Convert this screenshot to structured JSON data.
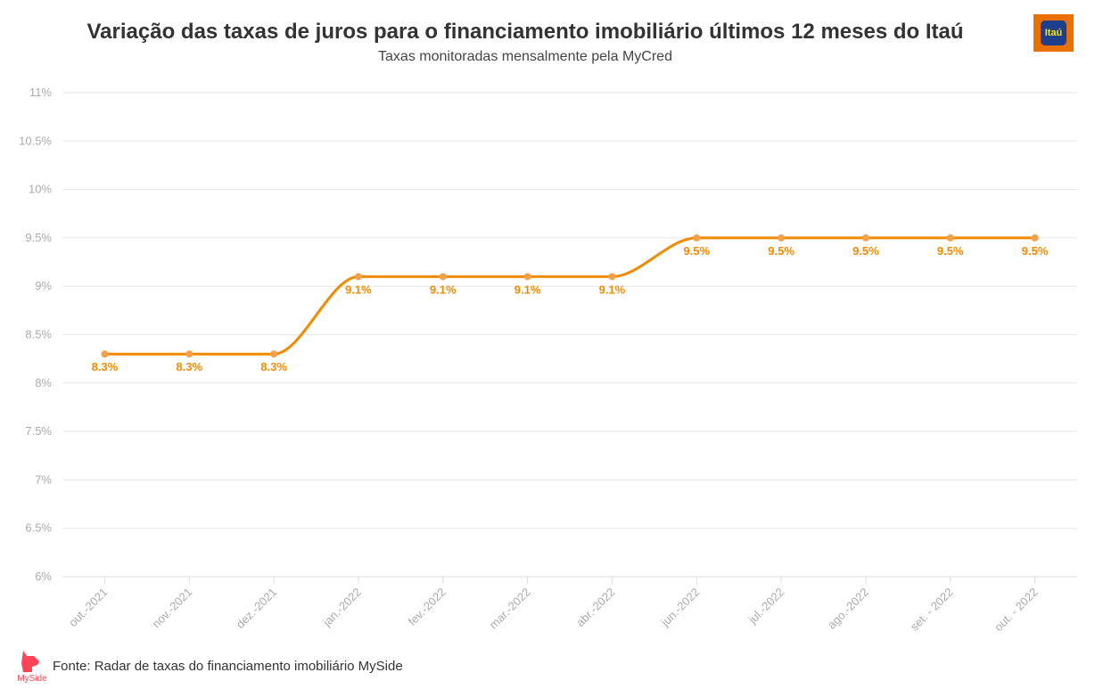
{
  "header": {
    "title": "Variação das taxas de juros para o financiamento imobiliário últimos 12 meses do Itaú",
    "subtitle": "Taxas monitoradas mensalmente pela MyCred",
    "brand_logo_text": "Itaú"
  },
  "footer": {
    "source": "Fonte: Radar de taxas do financiamento imobiliário MySide",
    "logo_text": "MySide"
  },
  "colors": {
    "line": "#f28a00",
    "brand_orange": "#ec7000",
    "brand_blue": "#1f3f8c",
    "myside_red": "#ff4455",
    "grid": "#e6e6e6"
  },
  "chart_data": {
    "type": "line",
    "title": "Variação das taxas de juros para o financiamento imobiliário últimos 12 meses do Itaú",
    "subtitle": "Taxas monitoradas mensalmente pela MyCred",
    "categories": [
      "out.-2021",
      "nov.-2021",
      "dez.-2021",
      "jan.-2022",
      "fev.-2022",
      "mar.-2022",
      "abr.-2022",
      "jun.-2022",
      "jul.-2022",
      "ago.-2022",
      "set. - 2022",
      "out. - 2022"
    ],
    "values": [
      8.3,
      8.3,
      8.3,
      9.1,
      9.1,
      9.1,
      9.1,
      9.5,
      9.5,
      9.5,
      9.5,
      9.5
    ],
    "data_labels": [
      "8.3%",
      "8.3%",
      "8.3%",
      "9.1%",
      "9.1%",
      "9.1%",
      "9.1%",
      "9.5%",
      "9.5%",
      "9.5%",
      "9.5%",
      "9.5%"
    ],
    "y_ticks": [
      "6%",
      "6.5%",
      "7%",
      "7.5%",
      "8%",
      "8.5%",
      "9%",
      "9.5%",
      "10%",
      "10.5%",
      "11%"
    ],
    "ylim": [
      6,
      11
    ],
    "y_step": 0.5,
    "grid": true,
    "legend": "none",
    "curve": "smooth"
  }
}
